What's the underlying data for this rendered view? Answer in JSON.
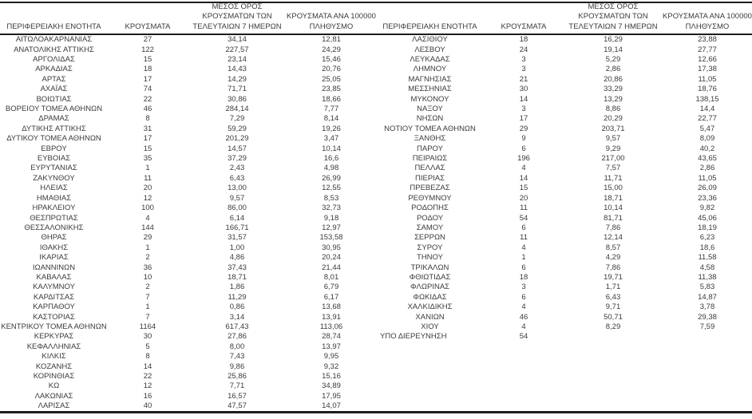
{
  "colors": {
    "text": "#3b3b3b",
    "border": "#1c1c1c",
    "background": "#ffffff"
  },
  "table": {
    "headers": {
      "region": "ΠΕΡΙΦΕΡΕΙΑΚΗ ΕΝΟΤΗΤΑ",
      "cases": "ΚΡΟΥΣΜΑΤΑ",
      "avg7_l1": "ΜΕΣΟΣ ΟΡΟΣ",
      "avg7_l2": "ΚΡΟΥΣΜΑΤΩΝ ΤΩΝ",
      "avg7_l3": "ΤΕΛΕΥΤΑΙΩΝ 7 ΗΜΕΡΩΝ",
      "per100k_l1": "ΚΡΟΥΣΜΑΤΑ ΑΝΑ 100000",
      "per100k_l2": "ΠΛΗΘΥΣΜΟ"
    },
    "left_rows": [
      {
        "region": "ΑΙΤΩΛΟΑΚΑΡΝΑΝΙΑΣ",
        "cases": "27",
        "avg7": "34,14",
        "per100k": "12,81"
      },
      {
        "region": "ΑΝΑΤΟΛΙΚΗΣ ΑΤΤΙΚΗΣ",
        "cases": "122",
        "avg7": "227,57",
        "per100k": "24,29"
      },
      {
        "region": "ΑΡΓΟΛΙΔΑΣ",
        "cases": "15",
        "avg7": "23,14",
        "per100k": "15,46"
      },
      {
        "region": "ΑΡΚΑΔΙΑΣ",
        "cases": "18",
        "avg7": "14,43",
        "per100k": "20,76"
      },
      {
        "region": "ΑΡΤΑΣ",
        "cases": "17",
        "avg7": "14,29",
        "per100k": "25,05"
      },
      {
        "region": "ΑΧΑΪΑΣ",
        "cases": "74",
        "avg7": "71,71",
        "per100k": "23,85"
      },
      {
        "region": "ΒΟΙΩΤΙΑΣ",
        "cases": "22",
        "avg7": "30,86",
        "per100k": "18,66"
      },
      {
        "region": "ΒΟΡΕΙΟΥ ΤΟΜΕΑ ΑΘΗΝΩΝ",
        "cases": "46",
        "avg7": "284,14",
        "per100k": "7,77"
      },
      {
        "region": "ΔΡΑΜΑΣ",
        "cases": "8",
        "avg7": "7,29",
        "per100k": "8,14"
      },
      {
        "region": "ΔΥΤΙΚΗΣ ΑΤΤΙΚΗΣ",
        "cases": "31",
        "avg7": "59,29",
        "per100k": "19,26"
      },
      {
        "region": "ΔΥΤΙΚΟΥ ΤΟΜΕΑ ΑΘΗΝΩΝ",
        "cases": "17",
        "avg7": "201,29",
        "per100k": "3,47"
      },
      {
        "region": "ΕΒΡΟΥ",
        "cases": "15",
        "avg7": "14,57",
        "per100k": "10,14"
      },
      {
        "region": "ΕΥΒΟΙΑΣ",
        "cases": "35",
        "avg7": "37,29",
        "per100k": "16,6"
      },
      {
        "region": "ΕΥΡΥΤΑΝΙΑΣ",
        "cases": "1",
        "avg7": "2,43",
        "per100k": "4,98"
      },
      {
        "region": "ΖΑΚΥΝΘΟΥ",
        "cases": "11",
        "avg7": "6,43",
        "per100k": "26,99"
      },
      {
        "region": "ΗΛΕΙΑΣ",
        "cases": "20",
        "avg7": "13,00",
        "per100k": "12,55"
      },
      {
        "region": "ΗΜΑΘΙΑΣ",
        "cases": "12",
        "avg7": "9,57",
        "per100k": "8,53"
      },
      {
        "region": "ΗΡΑΚΛΕΙΟΥ",
        "cases": "100",
        "avg7": "86,00",
        "per100k": "32,73"
      },
      {
        "region": "ΘΕΣΠΡΩΤΙΑΣ",
        "cases": "4",
        "avg7": "6,14",
        "per100k": "9,18"
      },
      {
        "region": "ΘΕΣΣΑΛΟΝΙΚΗΣ",
        "cases": "144",
        "avg7": "166,71",
        "per100k": "12,97"
      },
      {
        "region": "ΘΗΡΑΣ",
        "cases": "29",
        "avg7": "31,57",
        "per100k": "153,58"
      },
      {
        "region": "ΙΘΑΚΗΣ",
        "cases": "1",
        "avg7": "1,00",
        "per100k": "30,95"
      },
      {
        "region": "ΙΚΑΡΙΑΣ",
        "cases": "2",
        "avg7": "4,86",
        "per100k": "20,24"
      },
      {
        "region": "ΙΩΑΝΝΙΝΩΝ",
        "cases": "36",
        "avg7": "37,43",
        "per100k": "21,44"
      },
      {
        "region": "ΚΑΒΑΛΑΣ",
        "cases": "10",
        "avg7": "18,71",
        "per100k": "8,01"
      },
      {
        "region": "ΚΑΛΥΜΝΟΥ",
        "cases": "2",
        "avg7": "1,86",
        "per100k": "6,79"
      },
      {
        "region": "ΚΑΡΔΙΤΣΑΣ",
        "cases": "7",
        "avg7": "11,29",
        "per100k": "6,17"
      },
      {
        "region": "ΚΑΡΠΑΘΟΥ",
        "cases": "1",
        "avg7": "0,86",
        "per100k": "13,68"
      },
      {
        "region": "ΚΑΣΤΟΡΙΑΣ",
        "cases": "7",
        "avg7": "3,14",
        "per100k": "13,91"
      },
      {
        "region": "ΚΕΝΤΡΙΚΟΥ ΤΟΜΕΑ ΑΘΗΝΩΝ",
        "cases": "1164",
        "avg7": "617,43",
        "per100k": "113,06"
      },
      {
        "region": "ΚΕΡΚΥΡΑΣ",
        "cases": "30",
        "avg7": "27,86",
        "per100k": "28,74"
      },
      {
        "region": "ΚΕΦΑΛΛΗΝΙΑΣ",
        "cases": "5",
        "avg7": "8,00",
        "per100k": "13,97"
      },
      {
        "region": "ΚΙΛΚΙΣ",
        "cases": "8",
        "avg7": "7,43",
        "per100k": "9,95"
      },
      {
        "region": "ΚΟΖΑΝΗΣ",
        "cases": "14",
        "avg7": "9,86",
        "per100k": "9,32"
      },
      {
        "region": "ΚΟΡΙΝΘΙΑΣ",
        "cases": "22",
        "avg7": "25,86",
        "per100k": "15,16"
      },
      {
        "region": "ΚΩ",
        "cases": "12",
        "avg7": "7,71",
        "per100k": "34,89"
      },
      {
        "region": "ΛΑΚΩΝΙΑΣ",
        "cases": "16",
        "avg7": "16,57",
        "per100k": "17,95"
      },
      {
        "region": "ΛΑΡΙΣΑΣ",
        "cases": "40",
        "avg7": "47,57",
        "per100k": "14,07"
      }
    ],
    "right_rows": [
      {
        "region": "ΛΑΣΙΘΙΟΥ",
        "cases": "18",
        "avg7": "16,29",
        "per100k": "23,88"
      },
      {
        "region": "ΛΕΣΒΟΥ",
        "cases": "24",
        "avg7": "19,14",
        "per100k": "27,77"
      },
      {
        "region": "ΛΕΥΚΑΔΑΣ",
        "cases": "3",
        "avg7": "5,29",
        "per100k": "12,66"
      },
      {
        "region": "ΛΗΜΝΟΥ",
        "cases": "3",
        "avg7": "2,86",
        "per100k": "17,38"
      },
      {
        "region": "ΜΑΓΝΗΣΙΑΣ",
        "cases": "21",
        "avg7": "20,86",
        "per100k": "11,05"
      },
      {
        "region": "ΜΕΣΣΗΝΙΑΣ",
        "cases": "30",
        "avg7": "33,29",
        "per100k": "18,76"
      },
      {
        "region": "ΜΥΚΟΝΟΥ",
        "cases": "14",
        "avg7": "13,29",
        "per100k": "138,15"
      },
      {
        "region": "ΝΑΞΟΥ",
        "cases": "3",
        "avg7": "8,86",
        "per100k": "14,4"
      },
      {
        "region": "ΝΗΣΩΝ",
        "cases": "17",
        "avg7": "20,29",
        "per100k": "22,77"
      },
      {
        "region": "ΝΟΤΙΟΥ ΤΟΜΕΑ ΑΘΗΝΩΝ",
        "cases": "29",
        "avg7": "203,71",
        "per100k": "5,47"
      },
      {
        "region": "ΞΑΝΘΗΣ",
        "cases": "9",
        "avg7": "9,57",
        "per100k": "8,09"
      },
      {
        "region": "ΠΑΡΟΥ",
        "cases": "6",
        "avg7": "9,29",
        "per100k": "40,2"
      },
      {
        "region": "ΠΕΙΡΑΙΩΣ",
        "cases": "196",
        "avg7": "217,00",
        "per100k": "43,65"
      },
      {
        "region": "ΠΕΛΛΑΣ",
        "cases": "4",
        "avg7": "7,57",
        "per100k": "2,86"
      },
      {
        "region": "ΠΙΕΡΙΑΣ",
        "cases": "14",
        "avg7": "11,71",
        "per100k": "11,05"
      },
      {
        "region": "ΠΡΕΒΕΖΑΣ",
        "cases": "15",
        "avg7": "15,00",
        "per100k": "26,09"
      },
      {
        "region": "ΡΕΘΥΜΝΟΥ",
        "cases": "20",
        "avg7": "18,71",
        "per100k": "23,36"
      },
      {
        "region": "ΡΟΔΟΠΗΣ",
        "cases": "11",
        "avg7": "10,14",
        "per100k": "9,82"
      },
      {
        "region": "ΡΟΔΟΥ",
        "cases": "54",
        "avg7": "81,71",
        "per100k": "45,06"
      },
      {
        "region": "ΣΑΜΟΥ",
        "cases": "6",
        "avg7": "7,86",
        "per100k": "18,19"
      },
      {
        "region": "ΣΕΡΡΩΝ",
        "cases": "11",
        "avg7": "12,14",
        "per100k": "6,23"
      },
      {
        "region": "ΣΥΡΟΥ",
        "cases": "4",
        "avg7": "8,57",
        "per100k": "18,6"
      },
      {
        "region": "ΤΗΝΟΥ",
        "cases": "1",
        "avg7": "4,29",
        "per100k": "11,58"
      },
      {
        "region": "ΤΡΙΚΑΛΩΝ",
        "cases": "6",
        "avg7": "7,86",
        "per100k": "4,58"
      },
      {
        "region": "ΦΘΙΩΤΙΔΑΣ",
        "cases": "18",
        "avg7": "19,71",
        "per100k": "11,38"
      },
      {
        "region": "ΦΛΩΡΙΝΑΣ",
        "cases": "3",
        "avg7": "1,71",
        "per100k": "5,83"
      },
      {
        "region": "ΦΩΚΙΔΑΣ",
        "cases": "6",
        "avg7": "6,43",
        "per100k": "14,87"
      },
      {
        "region": "ΧΑΛΚΙΔΙΚΗΣ",
        "cases": "4",
        "avg7": "9,71",
        "per100k": "3,78"
      },
      {
        "region": "ΧΑΝΙΩΝ",
        "cases": "46",
        "avg7": "50,71",
        "per100k": "29,38"
      },
      {
        "region": "ΧΙΟΥ",
        "cases": "4",
        "avg7": "8,29",
        "per100k": "7,59"
      },
      {
        "region": "ΥΠΟ ΔΙΕΡΕΥΝΗΣΗ",
        "cases": "54",
        "avg7": "",
        "per100k": "",
        "align": "left"
      }
    ]
  }
}
